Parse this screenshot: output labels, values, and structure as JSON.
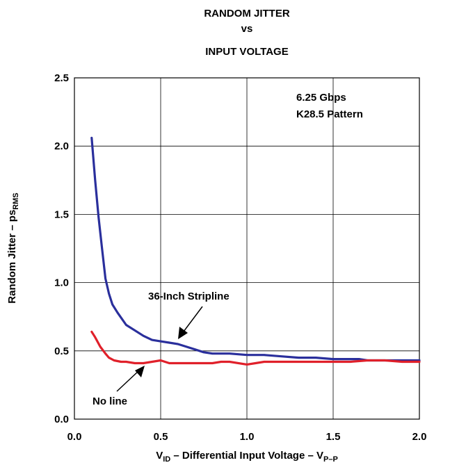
{
  "chart_data": {
    "type": "line",
    "title": [
      "RANDOM JITTER",
      "vs",
      "INPUT VOLTAGE"
    ],
    "xlabel": {
      "p1": "V",
      "s1": "ID",
      "p2": " – Differential Input Voltage – V",
      "s2": "P–P"
    },
    "ylabel": {
      "p1": "Random Jitter – ps",
      "s1": "RMS"
    },
    "xlim": [
      0.0,
      2.0
    ],
    "ylim": [
      0.0,
      2.5
    ],
    "xticks": [
      "0.0",
      "0.5",
      "1.0",
      "1.5",
      "2.0"
    ],
    "yticks": [
      "0.0",
      "0.5",
      "1.0",
      "1.5",
      "2.0",
      "2.5"
    ],
    "grid": true,
    "series": [
      {
        "name": "36-Inch Stripline",
        "color": "#2a2f9c",
        "x": [
          0.1,
          0.12,
          0.14,
          0.16,
          0.18,
          0.2,
          0.22,
          0.25,
          0.3,
          0.35,
          0.4,
          0.45,
          0.5,
          0.55,
          0.6,
          0.65,
          0.7,
          0.75,
          0.8,
          0.9,
          1.0,
          1.1,
          1.2,
          1.3,
          1.4,
          1.5,
          1.6,
          1.65,
          1.7,
          1.75,
          1.8,
          1.9,
          2.0
        ],
        "values": [
          2.06,
          1.75,
          1.48,
          1.25,
          1.03,
          0.92,
          0.84,
          0.78,
          0.69,
          0.65,
          0.61,
          0.58,
          0.57,
          0.56,
          0.55,
          0.53,
          0.51,
          0.49,
          0.48,
          0.48,
          0.47,
          0.47,
          0.46,
          0.45,
          0.45,
          0.44,
          0.44,
          0.44,
          0.43,
          0.43,
          0.43,
          0.43,
          0.43
        ]
      },
      {
        "name": "No line",
        "color": "#e0202a",
        "x": [
          0.1,
          0.12,
          0.15,
          0.18,
          0.2,
          0.23,
          0.27,
          0.3,
          0.35,
          0.4,
          0.45,
          0.5,
          0.55,
          0.6,
          0.7,
          0.8,
          0.85,
          0.9,
          1.0,
          1.05,
          1.1,
          1.2,
          1.3,
          1.4,
          1.5,
          1.6,
          1.7,
          1.8,
          1.9,
          2.0
        ],
        "values": [
          0.64,
          0.6,
          0.53,
          0.48,
          0.45,
          0.43,
          0.42,
          0.42,
          0.41,
          0.41,
          0.42,
          0.43,
          0.41,
          0.41,
          0.41,
          0.41,
          0.42,
          0.42,
          0.4,
          0.41,
          0.42,
          0.42,
          0.42,
          0.42,
          0.42,
          0.42,
          0.43,
          0.43,
          0.42,
          0.42
        ]
      }
    ],
    "annotations": [
      {
        "text": "6.25 Gbps"
      },
      {
        "text": "K28.5 Pattern"
      },
      {
        "text": "36-Inch Stripline"
      },
      {
        "text": "No line"
      }
    ]
  }
}
